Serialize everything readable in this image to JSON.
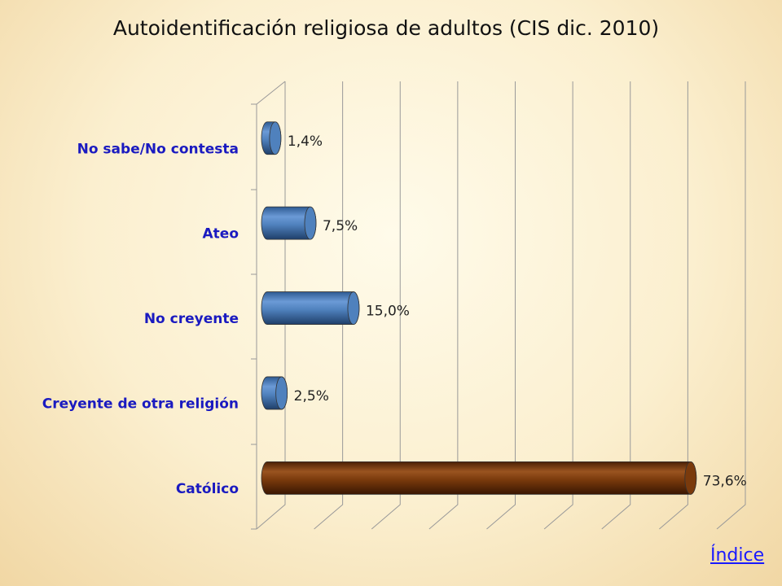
{
  "chart_data": {
    "type": "hbar3d",
    "title": "Autoidentificación religiosa de adultos (CIS dic. 2010)",
    "categories": [
      "No sabe/No contesta",
      "Ateo",
      "No creyente",
      "Creyente de otra religión",
      "Católico"
    ],
    "values": [
      1.4,
      7.5,
      15.0,
      2.5,
      73.6
    ],
    "value_labels": [
      "1,4%",
      "7,5%",
      "15,0%",
      "2,5%",
      "73,6%"
    ],
    "colors": [
      "#4f81bd",
      "#4f81bd",
      "#4f81bd",
      "#4f81bd",
      "#7a3a0c"
    ],
    "xlim": [
      0,
      80
    ],
    "xticks": [
      0,
      10,
      20,
      30,
      40,
      50,
      60,
      70,
      80
    ],
    "grid": true
  },
  "link": "Índice"
}
